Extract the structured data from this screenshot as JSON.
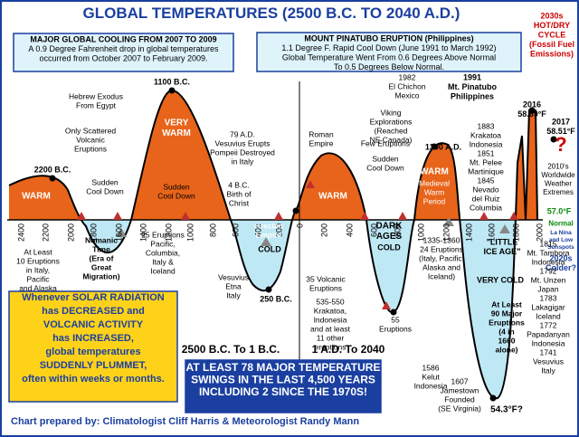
{
  "title": "GLOBAL TEMPERATURES (2500 B.C. TO 2040 A.D.)",
  "boxes": [
    [
      "MAJOR GLOBAL COOLING FROM 2007 TO 2009",
      "A 0.9 Degree Fahrenheit drop in global temperatures",
      "occurred from October 2007 to February 2009."
    ],
    [
      "MOUNT PINATUBO ERUPTION (Philippines)",
      "1.1 Degree F. Rapid Cool Down (June 1991 to March 1992)",
      "Global Temperature Went From 0.6 Degrees Above Normal",
      "To 0.5 Degrees Below Normal."
    ],
    [
      "Whenever SOLAR RADIATION",
      "has DECREASED and",
      "VOLCANIC ACTIVITY",
      "has INCREASED,",
      "global temperatures",
      "SUDDENLY PLUMMET,",
      "often within weeks or months."
    ],
    [
      "AT LEAST 78 MAJOR TEMPERATURE",
      "SWINGS IN THE LAST 4,500 YEARS",
      "INCLUDING 2 SINCE THE 1970S!"
    ]
  ],
  "era_labels": [
    "2500 B.C. To 1 B.C.",
    "1 A.D. To 2040"
  ],
  "axis_labels": [
    "2400",
    "2200",
    "2000",
    "1800",
    "1600",
    "1400",
    "1200",
    "1000",
    "800",
    "600",
    "400",
    "200",
    "0",
    "200",
    "400",
    "600",
    "800",
    "1000",
    "1200",
    "1400",
    "1600",
    "1800",
    "2000"
  ],
  "notes": [
    [
      "2030s",
      "HOT/DRY",
      "CYCLE",
      "(Fossil Fuel",
      "Emissions)"
    ],
    [
      "2200 B.C."
    ],
    [
      "WARM"
    ],
    [
      "Sudden",
      "Cool Down"
    ],
    [
      "Only Scattered",
      "Volcanic",
      "Eruptions"
    ],
    [
      "Hebrew Exodus",
      "From Egypt"
    ],
    [
      "1100 B.C."
    ],
    [
      "VERY",
      "WARM"
    ],
    [
      "Sudden",
      "Cool Down"
    ],
    [
      "79 A.D.",
      "Vesuvius Erupts",
      "Pompeii Destroyed",
      "in Italy"
    ],
    [
      "4 B.C.",
      "Birth of",
      "Christ"
    ],
    [
      "Roman",
      "Empire"
    ],
    [
      "WARM"
    ],
    [
      "Viking",
      "Explorations",
      "(Reached",
      "NE Canada)"
    ],
    [
      "1982",
      "El Chichon",
      "Mexico"
    ],
    [
      "1991",
      "Mt. Pinatubo",
      "Philippines"
    ],
    [
      "Few Eruptions"
    ],
    [
      "Sudden",
      "Cool Down"
    ],
    [
      "1300 A.D."
    ],
    [
      "WARM"
    ],
    [
      "Medieval",
      "Warm",
      "Period"
    ],
    [
      "1883",
      "Krakatoa",
      "Indonesia",
      "1851",
      "Mt. Pelee",
      "Martinique",
      "1845",
      "Nevado",
      "del Ruiz",
      "Columbia"
    ],
    [
      "2016",
      "58.69°F"
    ],
    [
      "2017",
      "58.51°F"
    ],
    [
      "?"
    ],
    [
      "2010's",
      "Worldwide",
      "Weather",
      "Extremes"
    ],
    [
      "57.0°F"
    ],
    [
      "Normal"
    ],
    [
      "La Nina",
      "and Low",
      "Sunspots"
    ],
    [
      "2020s",
      "Colder?"
    ],
    [
      "At Least",
      "10 Eruptions",
      "in Italy,",
      "Pacific",
      "and Alaska"
    ],
    [
      "Nomanic",
      "Time",
      "(Era of",
      "Great",
      "Migration)"
    ],
    [
      "25 Eruptions",
      "Pacific,",
      "Columbia,",
      "Italy &",
      "Iceland"
    ],
    [
      "Grecian",
      "Empire"
    ],
    [
      "COLD"
    ],
    [
      "Vesuvius",
      "Etna",
      "Italy"
    ],
    [
      "250 B.C."
    ],
    [
      "35 Volcanic",
      "Eruptions"
    ],
    [
      "535-550",
      "Krakatoa,",
      "Indonesia",
      "and at least",
      "11 other",
      "eruptions"
    ],
    [
      "DARK",
      "AGES"
    ],
    [
      "COLD"
    ],
    [
      "55",
      "Eruptions"
    ],
    [
      "1335-1360",
      "24 Eruptions",
      "(Italy, Pacific,",
      "Alaska and",
      "Iceland)"
    ],
    [
      "\"LITTLE",
      "ICE AGE\""
    ],
    [
      "VERY COLD"
    ],
    [
      "At Least",
      "90 Major",
      "Eruptions",
      "(4 in",
      "1660",
      "alone)"
    ],
    [
      "1815",
      "Mt. Tambora",
      "Indonesia",
      "1792",
      "Mt. Unzen",
      "Japan",
      "1783",
      "Lakagigar",
      "Iceland",
      "1772",
      "Papadanyan",
      "Indonesia",
      "1741",
      "Vesuvius",
      "Italy"
    ],
    [
      "1586",
      "Kelut",
      "Indonesia"
    ],
    [
      "1607",
      "Jamestown",
      "Founded",
      "(SE Virginia)"
    ],
    [
      "54.3°F?"
    ]
  ],
  "credit": "Chart prepared by: Climatologist Cliff Harris & Meteorologist Randy Mann"
}
